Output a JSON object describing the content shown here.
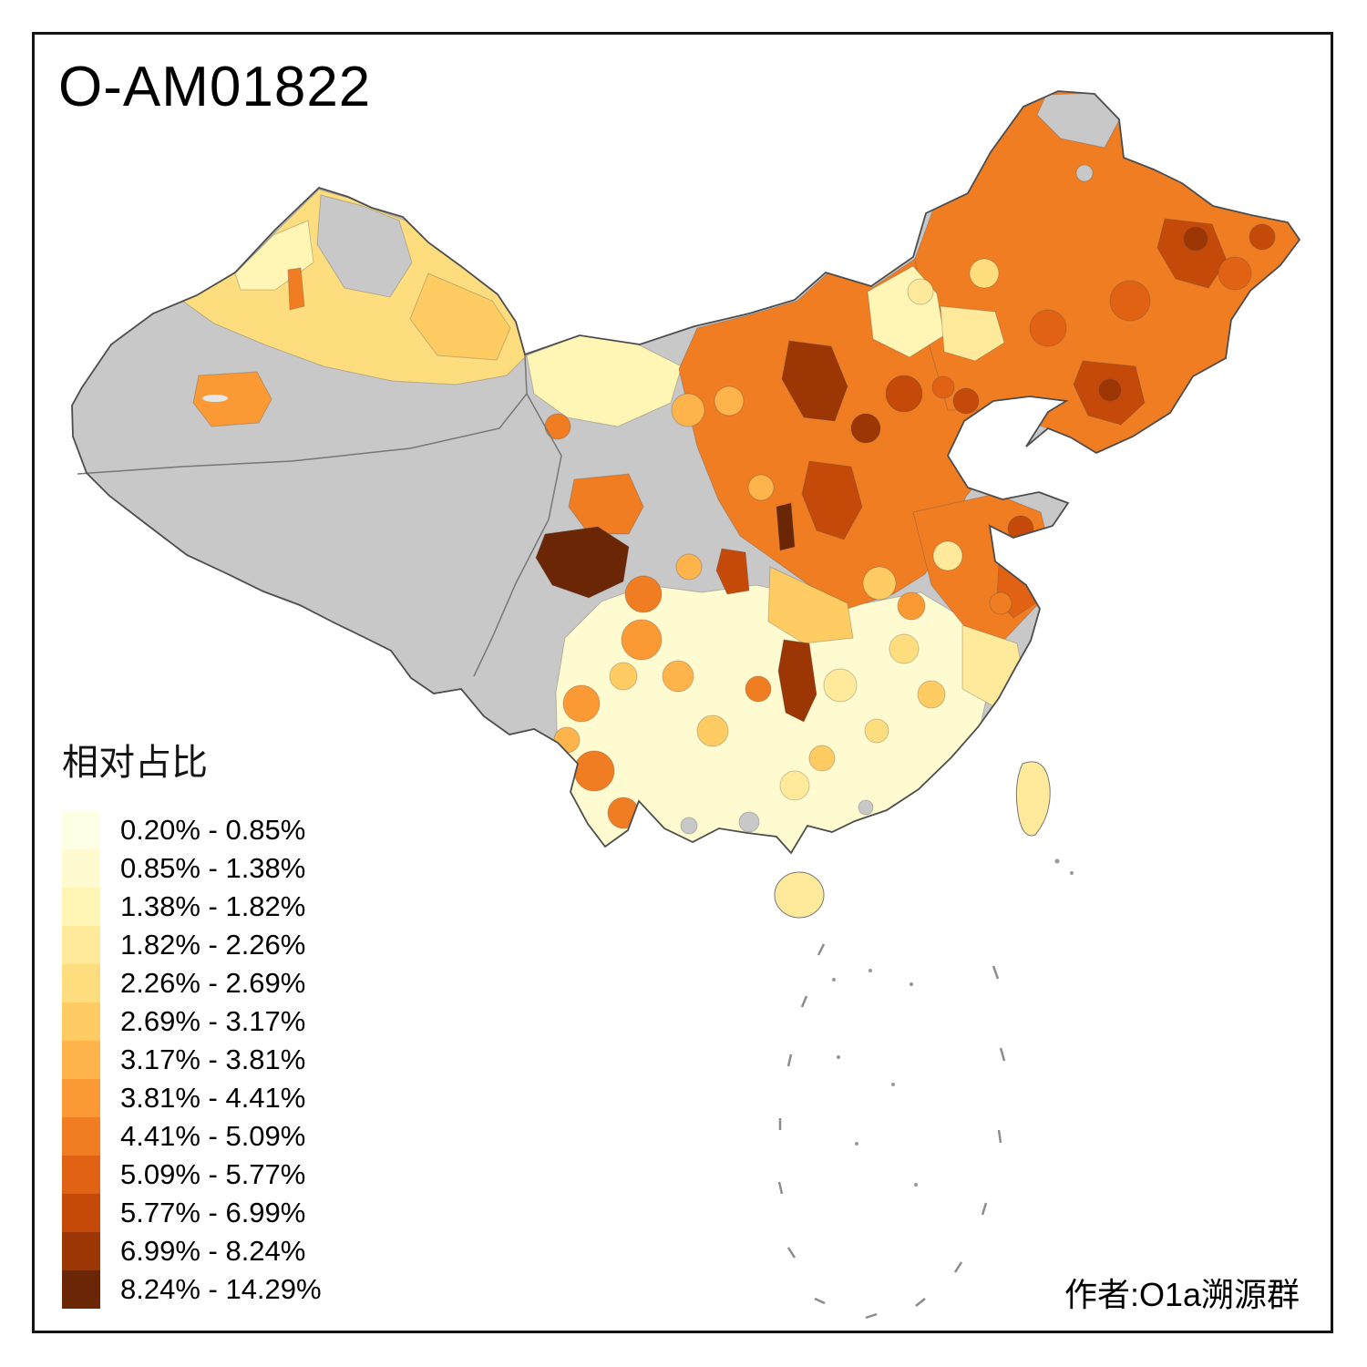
{
  "title": "O-AM01822",
  "author": "作者:O1a溯源群",
  "legend": {
    "title": "相对占比",
    "items": [
      {
        "range": "0.20% - 0.85%",
        "color": "#FFFFE5"
      },
      {
        "range": "0.85% - 1.38%",
        "color": "#FFFBD0"
      },
      {
        "range": "1.38% - 1.82%",
        "color": "#FFF5B5"
      },
      {
        "range": "1.82% - 2.26%",
        "color": "#FEEA9A"
      },
      {
        "range": "2.26% - 2.69%",
        "color": "#FEDD7E"
      },
      {
        "range": "2.69% - 3.17%",
        "color": "#FECC63"
      },
      {
        "range": "3.17% - 3.81%",
        "color": "#FEB34B"
      },
      {
        "range": "3.81% - 4.41%",
        "color": "#FB9A35"
      },
      {
        "range": "4.41% - 5.09%",
        "color": "#F17D22"
      },
      {
        "range": "5.09% - 5.77%",
        "color": "#E16212"
      },
      {
        "range": "5.77% - 6.99%",
        "color": "#C54A09"
      },
      {
        "range": "6.99% - 8.24%",
        "color": "#9C3604"
      },
      {
        "range": "8.24% - 14.29%",
        "color": "#6B2605"
      }
    ]
  },
  "map": {
    "no_data_color": "#C8C8C8",
    "border_color": "#4D4D4D",
    "background_color": "#FFFFFF"
  }
}
